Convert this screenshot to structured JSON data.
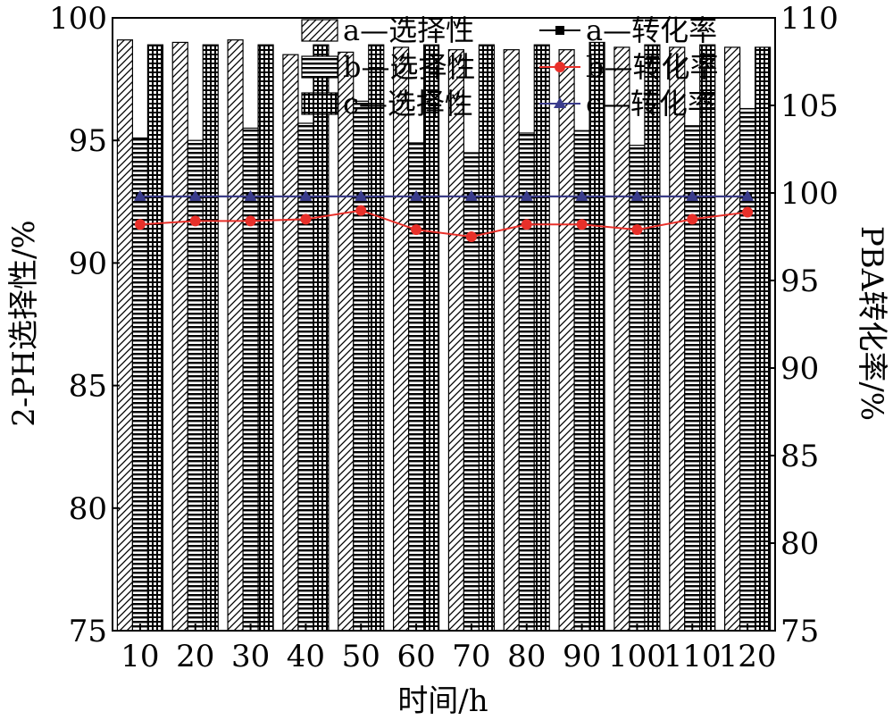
{
  "chart_data": {
    "type": "bar",
    "title": "",
    "xlabel": "时间/h",
    "ylabel": "2-PH选择性/%",
    "y2label": "PBA转化率/%",
    "categories": [
      10,
      20,
      30,
      40,
      50,
      60,
      70,
      80,
      90,
      100,
      110,
      120
    ],
    "ylim": [
      75,
      100
    ],
    "y2lim": [
      75,
      110
    ],
    "yticks": [
      75,
      80,
      85,
      90,
      95,
      100
    ],
    "y2ticks": [
      75,
      80,
      85,
      90,
      95,
      100,
      105,
      110
    ],
    "legend_position": "top",
    "series": [
      {
        "name": "a—选择性",
        "kind": "bar",
        "axis": "left",
        "pattern": "diagonal",
        "values": [
          99.1,
          99.0,
          99.1,
          98.5,
          98.6,
          98.8,
          98.7,
          98.7,
          98.7,
          98.8,
          98.8,
          98.8
        ]
      },
      {
        "name": "b—选择性",
        "kind": "bar",
        "axis": "left",
        "pattern": "horizontal",
        "values": [
          95.1,
          95.0,
          95.5,
          95.7,
          96.6,
          94.9,
          94.5,
          95.3,
          95.4,
          94.8,
          95.6,
          96.3
        ]
      },
      {
        "name": "c—选择性",
        "kind": "bar",
        "axis": "left",
        "pattern": "grid",
        "values": [
          98.9,
          98.9,
          98.9,
          98.9,
          98.9,
          98.9,
          98.9,
          98.9,
          99.0,
          98.9,
          98.9,
          98.8
        ]
      },
      {
        "name": "a—转化率",
        "kind": "line",
        "axis": "right",
        "color": "#000000",
        "marker": "square",
        "values": [
          99.8,
          99.8,
          99.8,
          99.8,
          99.8,
          99.8,
          99.8,
          99.8,
          99.8,
          99.8,
          99.8,
          99.8
        ]
      },
      {
        "name": "b—转化率",
        "kind": "line",
        "axis": "right",
        "color": "#e8302a",
        "marker": "circle",
        "values": [
          98.2,
          98.4,
          98.4,
          98.5,
          99.0,
          97.9,
          97.5,
          98.2,
          98.2,
          97.9,
          98.5,
          98.9
        ]
      },
      {
        "name": "c—转化率",
        "kind": "line",
        "axis": "right",
        "color": "#3a3c8c",
        "marker": "triangle",
        "values": [
          99.8,
          99.8,
          99.8,
          99.8,
          99.8,
          99.8,
          99.8,
          99.8,
          99.8,
          99.8,
          99.8,
          99.8
        ]
      }
    ]
  }
}
